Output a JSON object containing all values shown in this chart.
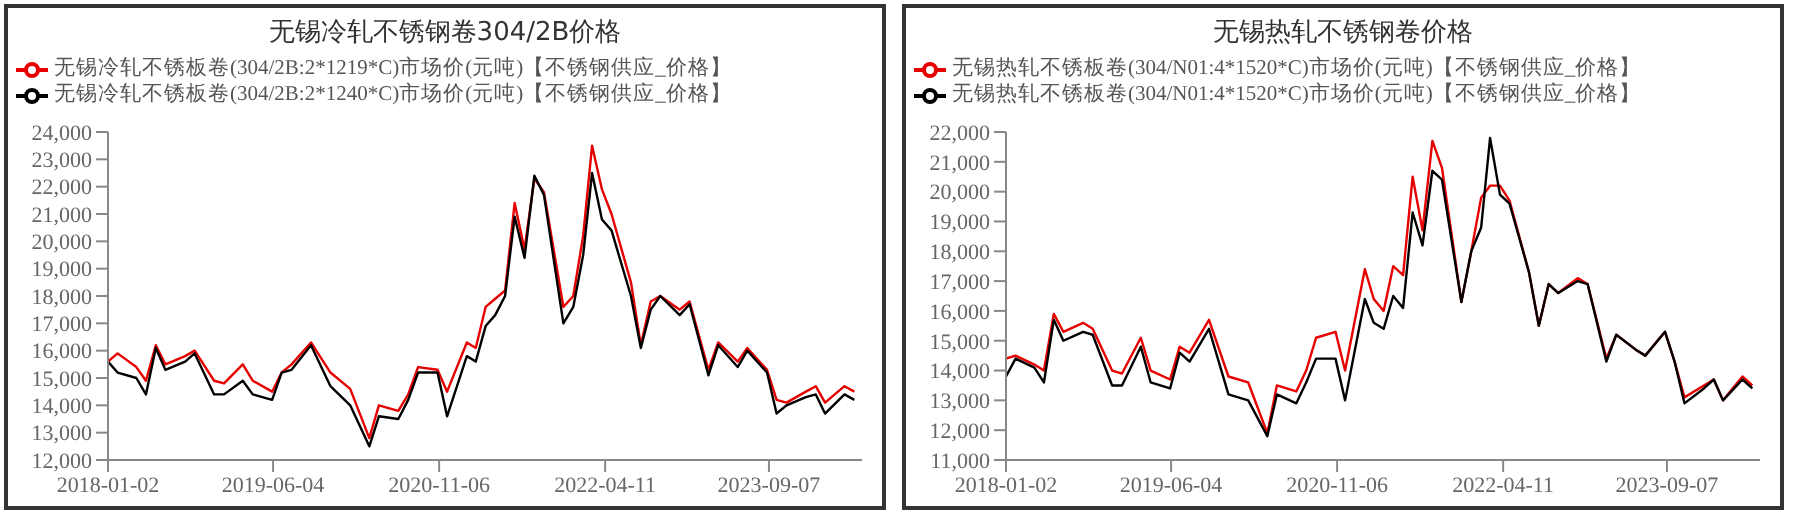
{
  "chart_data": [
    {
      "type": "line",
      "title": "无锡冷轧不锈钢卷304/2B价格",
      "legend": "top",
      "grid": false,
      "marker": "none",
      "line_style": "solid",
      "x": [
        "2018-01-02",
        "2018-02",
        "2018-04",
        "2018-05",
        "2018-06",
        "2018-07",
        "2018-09",
        "2018-10",
        "2018-12",
        "2019-01",
        "2019-03",
        "2019-04",
        "2019-06",
        "2019-07",
        "2019-08",
        "2019-10",
        "2019-12",
        "2020-02",
        "2020-04",
        "2020-05",
        "2020-07",
        "2020-08",
        "2020-09",
        "2020-11",
        "2020-12",
        "2021-02",
        "2021-03",
        "2021-04",
        "2021-05",
        "2021-06",
        "2021-07",
        "2021-08",
        "2021-09",
        "2021-10",
        "2021-12",
        "2022-01",
        "2022-02",
        "2022-03",
        "2022-04",
        "2022-05",
        "2022-07",
        "2022-08",
        "2022-09",
        "2022-10",
        "2022-12",
        "2023-01",
        "2023-03",
        "2023-04",
        "2023-06",
        "2023-07",
        "2023-09",
        "2023-10",
        "2023-11",
        "2024-01",
        "2024-02",
        "2024-03",
        "2024-05",
        "2024-06"
      ],
      "xlim": [
        "2018-01-02",
        "2024-06-25"
      ],
      "xticks": [
        "2018-01-02",
        "2019-06-04",
        "2020-11-06",
        "2022-04-11",
        "2023-09-07"
      ],
      "ylim": [
        12000,
        24000
      ],
      "yticks": [
        {
          "value": 12000,
          "label": "12,000"
        },
        {
          "value": 13000,
          "label": "13,000"
        },
        {
          "value": 14000,
          "label": "14,000"
        },
        {
          "value": 15000,
          "label": "15,000"
        },
        {
          "value": 16000,
          "label": "16,000"
        },
        {
          "value": 17000,
          "label": "17,000"
        },
        {
          "value": 18000,
          "label": "18,000"
        },
        {
          "value": 19000,
          "label": "19,000"
        },
        {
          "value": 20000,
          "label": "20,000"
        },
        {
          "value": 21000,
          "label": "21,000"
        },
        {
          "value": 22000,
          "label": "22,000"
        },
        {
          "value": 23000,
          "label": "23,000"
        },
        {
          "value": 24000,
          "label": "24,000"
        }
      ],
      "series": [
        {
          "name": "无锡冷轧不锈板卷(304/2B:2*1219*C)市场价(元吨)【不锈钢供应_价格】",
          "color": "#e60000",
          "values": [
            15600,
            15900,
            15400,
            14900,
            16200,
            15500,
            15800,
            16000,
            14900,
            14800,
            15500,
            14900,
            14500,
            15200,
            15500,
            16300,
            15200,
            14600,
            12800,
            14000,
            13800,
            14400,
            15400,
            15300,
            14500,
            16300,
            16100,
            17600,
            17900,
            18200,
            21400,
            19700,
            22300,
            21800,
            17600,
            18000,
            20200,
            23500,
            21900,
            21000,
            18500,
            16200,
            17800,
            18000,
            17500,
            17800,
            15300,
            16300,
            15600,
            16100,
            15300,
            14200,
            14100,
            14500,
            14700,
            14100,
            14700,
            14500
          ]
        },
        {
          "name": "无锡冷轧不锈板卷(304/2B:2*1240*C)市场价(元吨)【不锈钢供应_价格】",
          "color": "#000000",
          "values": [
            15600,
            15200,
            15000,
            14400,
            16100,
            15300,
            15600,
            15900,
            14400,
            14400,
            14900,
            14400,
            14200,
            15200,
            15300,
            16200,
            14700,
            14000,
            12500,
            13600,
            13500,
            14200,
            15200,
            15200,
            13600,
            15800,
            15600,
            16900,
            17300,
            18000,
            20900,
            19400,
            22400,
            21700,
            17000,
            17600,
            19500,
            22500,
            20800,
            20400,
            18000,
            16100,
            17500,
            18000,
            17300,
            17700,
            15100,
            16200,
            15400,
            16000,
            15200,
            13700,
            14000,
            14300,
            14400,
            13700,
            14400,
            14200
          ]
        }
      ]
    },
    {
      "type": "line",
      "title": "无锡热轧不锈钢卷价格",
      "legend": "top",
      "grid": false,
      "marker": "none",
      "line_style": "solid",
      "x": [
        "2018-01-02",
        "2018-02",
        "2018-04",
        "2018-05",
        "2018-06",
        "2018-07",
        "2018-09",
        "2018-10",
        "2018-12",
        "2019-01",
        "2019-03",
        "2019-04",
        "2019-06",
        "2019-07",
        "2019-08",
        "2019-10",
        "2019-12",
        "2020-02",
        "2020-04",
        "2020-05",
        "2020-07",
        "2020-08",
        "2020-09",
        "2020-11",
        "2020-12",
        "2021-02",
        "2021-03",
        "2021-04",
        "2021-05",
        "2021-06",
        "2021-07",
        "2021-08",
        "2021-09",
        "2021-10",
        "2021-12",
        "2022-01",
        "2022-02",
        "2022-03",
        "2022-04",
        "2022-05",
        "2022-07",
        "2022-08",
        "2022-09",
        "2022-10",
        "2022-12",
        "2023-01",
        "2023-03",
        "2023-04",
        "2023-06",
        "2023-07",
        "2023-09",
        "2023-10",
        "2023-11",
        "2024-01",
        "2024-02",
        "2024-03",
        "2024-05",
        "2024-06"
      ],
      "xlim": [
        "2018-01-02",
        "2024-06-25"
      ],
      "xticks": [
        "2018-01-02",
        "2019-06-04",
        "2020-11-06",
        "2022-04-11",
        "2023-09-07"
      ],
      "ylim": [
        11000,
        22000
      ],
      "yticks": [
        {
          "value": 11000,
          "label": "11,000"
        },
        {
          "value": 12000,
          "label": "12,000"
        },
        {
          "value": 13000,
          "label": "13,000"
        },
        {
          "value": 14000,
          "label": "14,000"
        },
        {
          "value": 15000,
          "label": "15,000"
        },
        {
          "value": 16000,
          "label": "16,000"
        },
        {
          "value": 17000,
          "label": "17,000"
        },
        {
          "value": 18000,
          "label": "18,000"
        },
        {
          "value": 19000,
          "label": "19,000"
        },
        {
          "value": 20000,
          "label": "20,000"
        },
        {
          "value": 21000,
          "label": "21,000"
        },
        {
          "value": 22000,
          "label": "22,000"
        }
      ],
      "series": [
        {
          "name": "无锡热轧不锈板卷(304/N01:4*1520*C)市场价(元吨)【不锈钢供应_价格】",
          "color": "#e60000",
          "values": [
            14400,
            14500,
            14200,
            14000,
            15900,
            15300,
            15600,
            15400,
            14000,
            13900,
            15100,
            14000,
            13700,
            14800,
            14600,
            15700,
            13800,
            13600,
            11900,
            13500,
            13300,
            14000,
            15100,
            15300,
            14000,
            17400,
            16400,
            16000,
            17500,
            17200,
            20500,
            18700,
            21700,
            20800,
            16300,
            18000,
            19800,
            20200,
            20200,
            19700,
            17300,
            15500,
            16900,
            16600,
            17100,
            16900,
            14400,
            15200,
            14700,
            14500,
            15300,
            14300,
            13100,
            13500,
            13700,
            13000,
            13800,
            13500
          ]
        },
        {
          "name": "无锡热轧不锈板卷(304/N01:4*1520*C)市场价(元吨)【不锈钢供应_价格】",
          "color": "#000000",
          "values": [
            13800,
            14400,
            14100,
            13600,
            15700,
            15000,
            15300,
            15200,
            13500,
            13500,
            14800,
            13600,
            13400,
            14600,
            14300,
            15400,
            13200,
            13000,
            11800,
            13200,
            12900,
            13600,
            14400,
            14400,
            13000,
            16400,
            15600,
            15400,
            16500,
            16100,
            19300,
            18200,
            20700,
            20400,
            16300,
            18000,
            18800,
            21800,
            19900,
            19600,
            17300,
            15500,
            16900,
            16600,
            17000,
            16900,
            14300,
            15200,
            14700,
            14500,
            15300,
            14300,
            12900,
            13400,
            13700,
            13000,
            13700,
            13400
          ]
        }
      ]
    }
  ]
}
